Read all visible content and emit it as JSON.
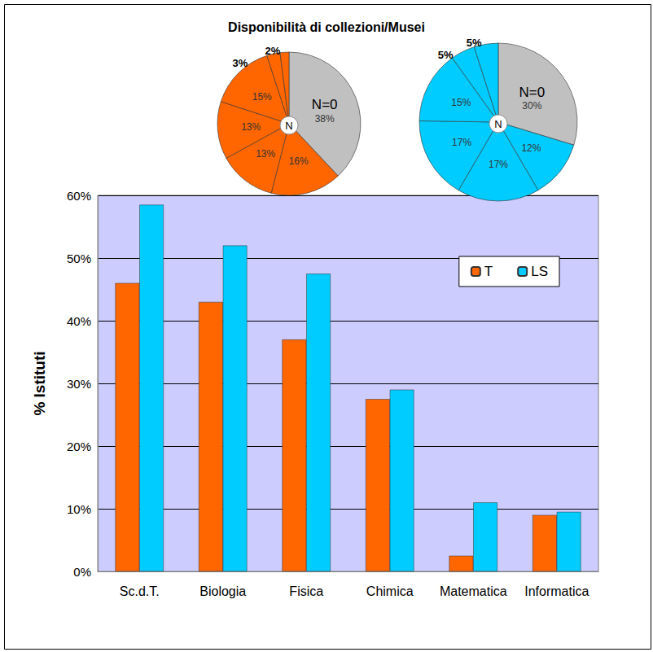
{
  "chart_data": [
    {
      "type": "bar",
      "title": "Disponibilità di collezioni/Musei",
      "y_label": "% Istituti",
      "categories": [
        "Sc.d.T.",
        "Biologia",
        "Fisica",
        "Chimica",
        "Matematica",
        "Informatica"
      ],
      "series": [
        {
          "name": "T",
          "color": "#ff6600",
          "values": [
            46,
            43,
            37,
            27.5,
            2.5,
            9
          ]
        },
        {
          "name": "LS",
          "color": "#00ccff",
          "values": [
            58.5,
            52,
            47.5,
            29,
            11,
            9.5
          ]
        }
      ],
      "ylim": [
        0,
        60
      ],
      "yticks": [
        {
          "value": 0,
          "label": "0%"
        },
        {
          "value": 10,
          "label": "10%"
        },
        {
          "value": 20,
          "label": "20%"
        },
        {
          "value": 30,
          "label": "30%"
        },
        {
          "value": 40,
          "label": "40%"
        },
        {
          "value": 50,
          "label": "50%"
        },
        {
          "value": 60,
          "label": "60%"
        }
      ],
      "grid": true,
      "legend": "upper right"
    },
    {
      "type": "pie",
      "annotation": "N",
      "categories": [
        "N=0",
        null,
        null,
        null,
        null,
        null,
        null
      ],
      "values": [
        38,
        16,
        13,
        13,
        15,
        3,
        2
      ],
      "value_labels": [
        "38%",
        "16%",
        "13%",
        "13%",
        "15%",
        "3%",
        "2%"
      ],
      "colors": [
        "#c0c0c0",
        "#ff6600",
        "#ff6600",
        "#ff6600",
        "#ff6600",
        "#ff6600",
        "#ff6600"
      ],
      "data_labels": true
    },
    {
      "type": "pie",
      "annotation": "N",
      "categories": [
        "N=0",
        null,
        null,
        null,
        null,
        null,
        null
      ],
      "values": [
        30,
        12,
        17,
        17,
        15,
        5,
        5
      ],
      "value_labels": [
        "30%",
        "12%",
        "17%",
        "17%",
        "15%",
        "5%",
        "5%"
      ],
      "colors": [
        "#c0c0c0",
        "#00ccff",
        "#00ccff",
        "#00ccff",
        "#00ccff",
        "#00ccff",
        "#00ccff"
      ],
      "data_labels": true
    }
  ]
}
